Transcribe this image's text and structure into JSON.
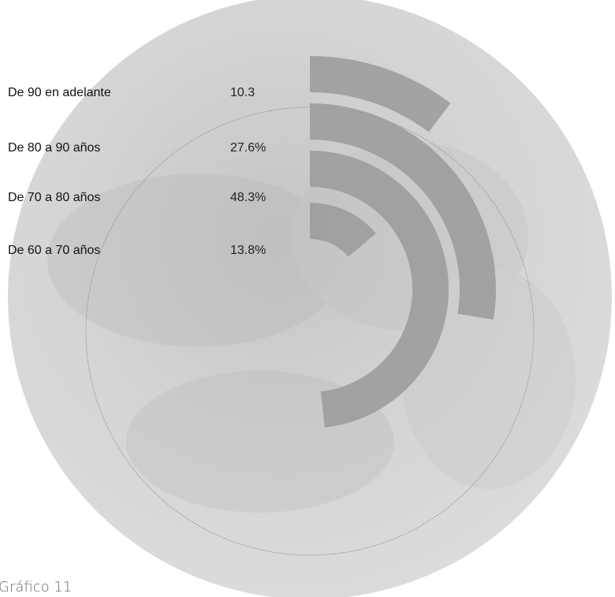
{
  "caption": "Gráfico 11",
  "colors": {
    "background_disc": "#d3d3d3",
    "bar_fill": "#9a9a9a",
    "track_line": "#8c8c8c"
  },
  "chart_data": {
    "type": "radial_bar",
    "categories": [
      "De 90 en adelante",
      "De 80 a 90 años",
      "De 70 a 80 años",
      "De 60 a 70 años"
    ],
    "value_labels": [
      "10.3",
      "27.6%",
      "48.3%",
      "13.8%"
    ],
    "values": [
      10.3,
      27.6,
      48.3,
      13.8
    ],
    "unit": "%",
    "start_angle": "top",
    "direction": "clockwise",
    "legend_position": "top-left"
  }
}
